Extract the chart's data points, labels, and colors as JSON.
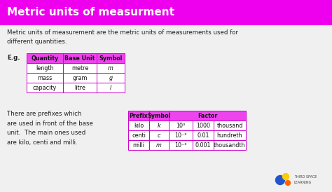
{
  "title": "Metric units of measurment",
  "title_bg": "#ee00ee",
  "title_color": "#ffffff",
  "bg_color": "#f0f0f0",
  "body_text1": "Metric units of measurement are the metric units of measurements used for\ndifferent quantities.",
  "eg_label": "E.g.",
  "table1_headers": [
    "Quantity",
    "Base Unit",
    "Symbol"
  ],
  "table1_rows": [
    [
      "length",
      "metre",
      "m"
    ],
    [
      "mass",
      "gram",
      "g"
    ],
    [
      "capacity",
      "litre",
      "l"
    ]
  ],
  "table1_italic_col": 2,
  "body_text2": "There are prefixes which\nare used in front of the base\nunit.  The main ones used\nare kilo, centi and milli.",
  "table2_headers": [
    "Prefix",
    "Symbol",
    "Factor"
  ],
  "table2_rows": [
    [
      "kilo",
      "k",
      "10³",
      "1000",
      "thousand"
    ],
    [
      "centi",
      "c",
      "10⁻²",
      "0.01",
      "hundreth"
    ],
    [
      "milli",
      "m",
      "10⁻³",
      "0.001",
      "thousandth"
    ]
  ],
  "table_header_bg": "#ee44ee",
  "table_border": "#cc00cc",
  "table_row_bg": "#ffffff",
  "text_color": "#222222",
  "font_size_title": 11,
  "font_size_body": 6.2,
  "font_size_table": 5.8
}
